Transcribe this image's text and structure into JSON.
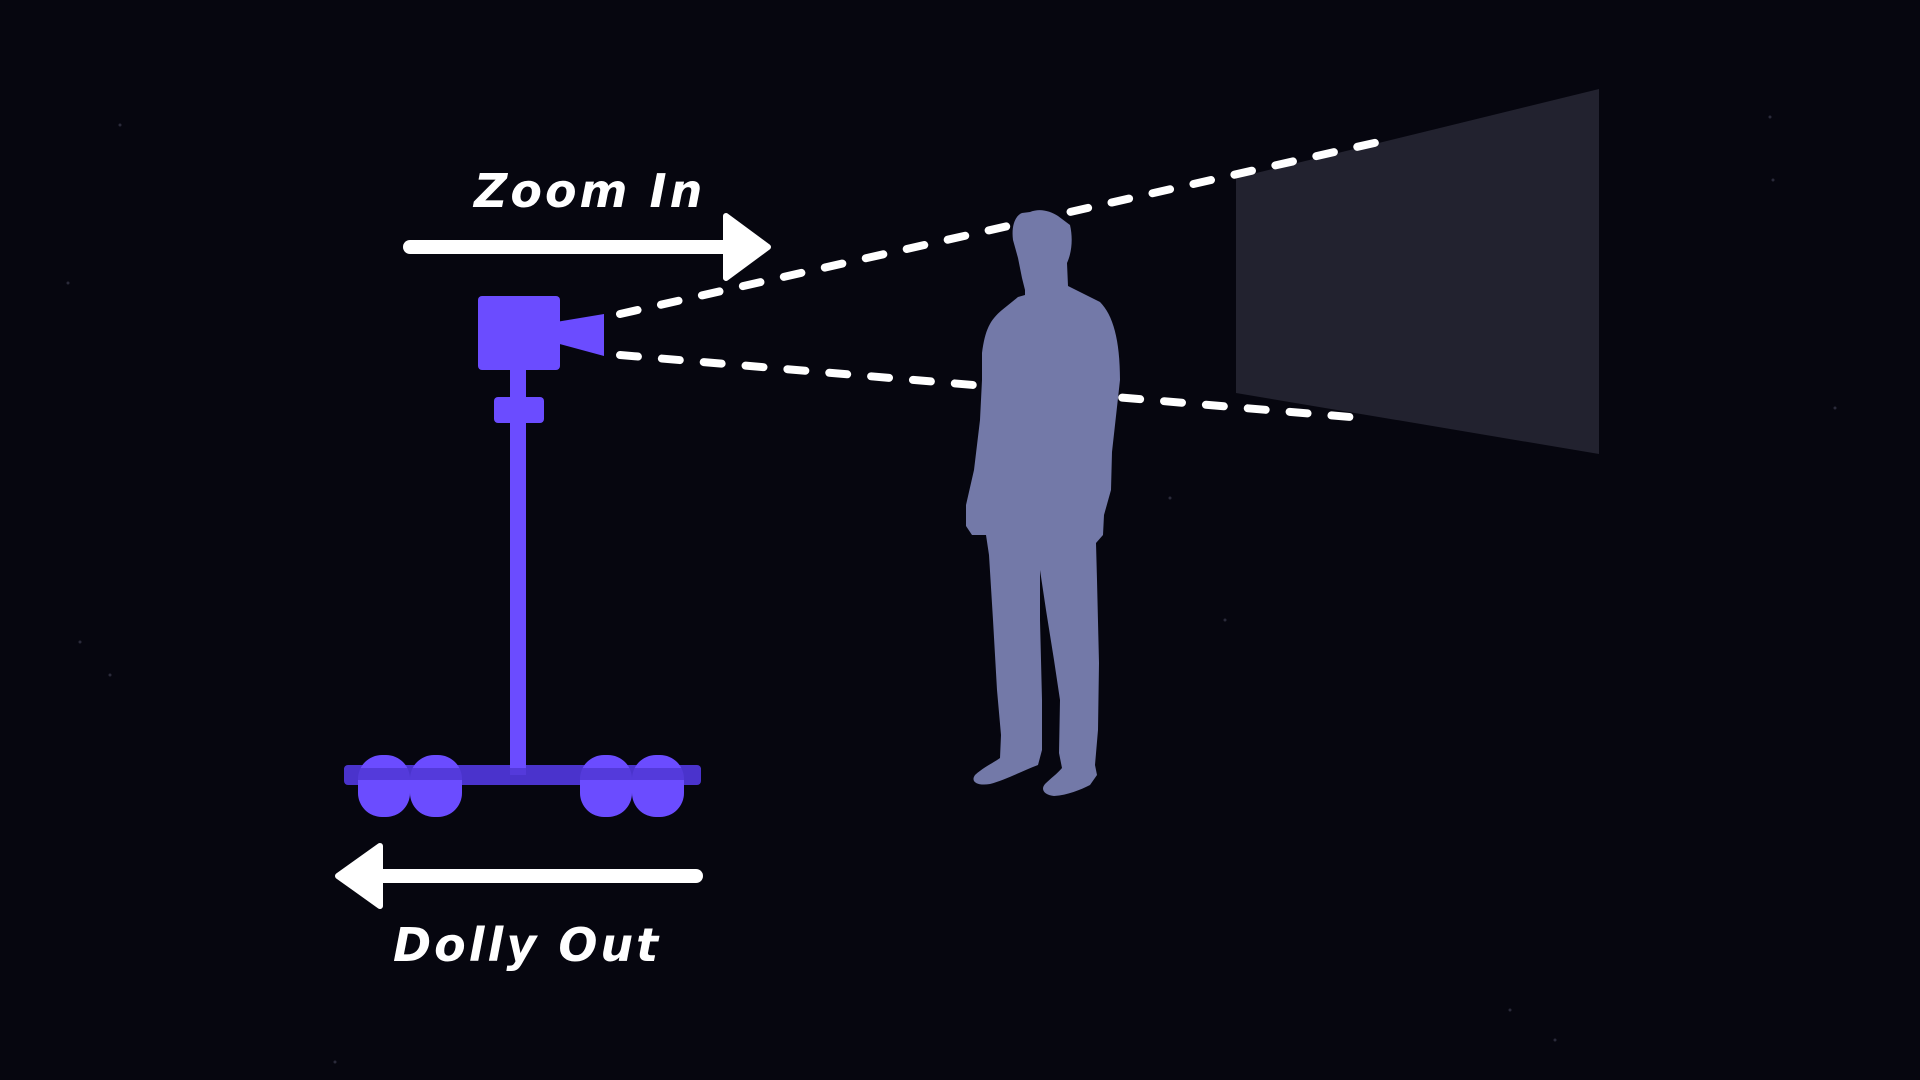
{
  "labels": {
    "zoom_in": "Zoom In",
    "dolly_out": "Dolly Out"
  },
  "colors": {
    "background": "#06060f",
    "camera_rig": "#6b4cff",
    "rig_shadow": "#4a33cc",
    "person_silhouette": "#7379a8",
    "screen": "#22222f",
    "arrows": "#ffffff",
    "view_lines": "#ffffff"
  },
  "icons": {
    "camera": "video-camera-icon",
    "person": "person-silhouette-icon",
    "zoom_arrow": "arrow-right-icon",
    "dolly_arrow": "arrow-left-icon"
  }
}
